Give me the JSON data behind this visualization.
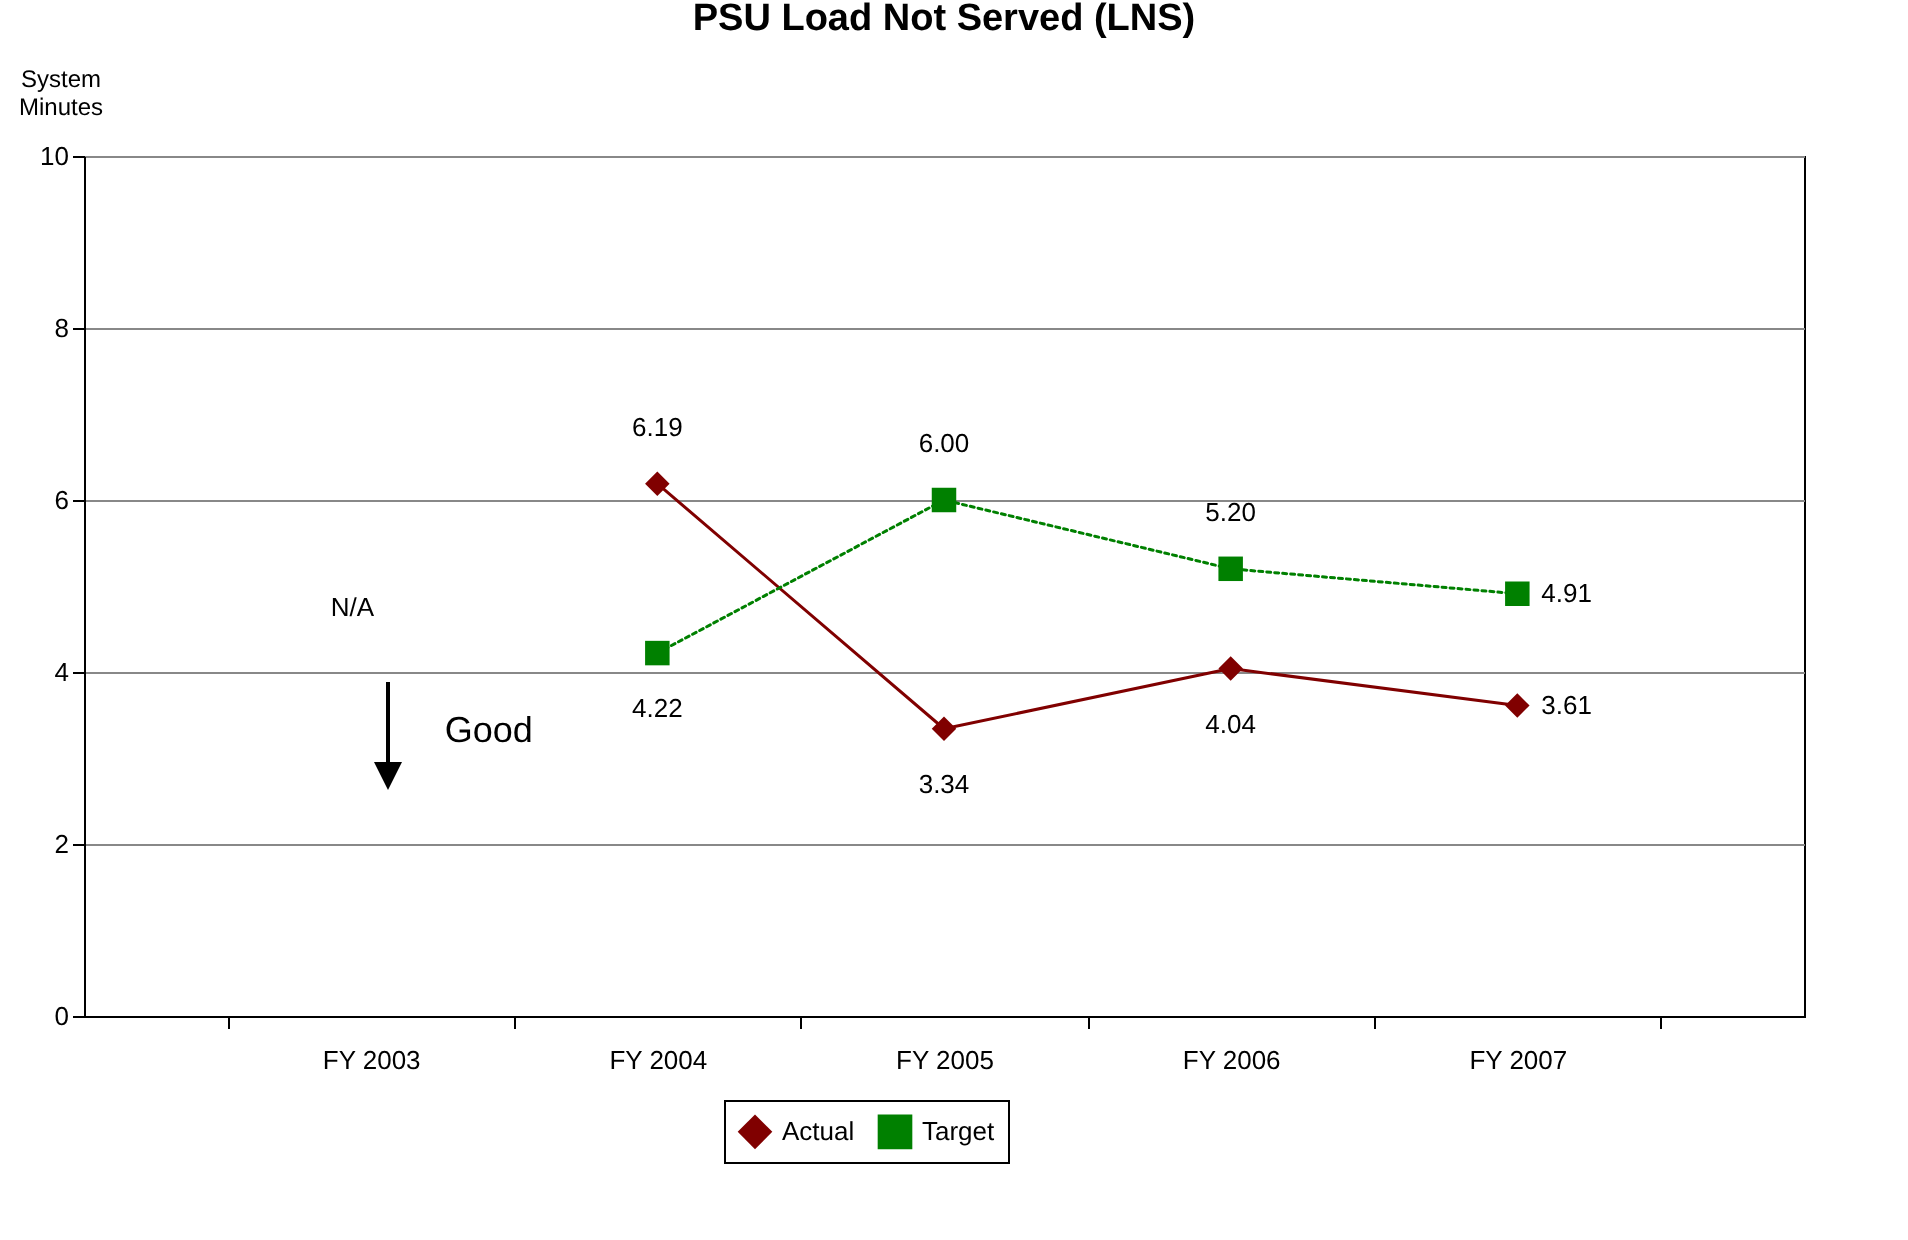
{
  "chart_data": {
    "type": "line",
    "title": "PSU Load Not Served (LNS)",
    "ylabel": "System Minutes",
    "categories": [
      "FY 2003",
      "FY 2004",
      "FY 2005",
      "FY 2006",
      "FY 2007"
    ],
    "series": [
      {
        "name": "Actual",
        "color": "#800000",
        "marker": "diamond",
        "line_style": "solid",
        "values": [
          null,
          6.19,
          3.34,
          4.04,
          3.61
        ],
        "value_labels": [
          null,
          "6.19",
          "3.34",
          "4.04",
          "3.61"
        ]
      },
      {
        "name": "Target",
        "color": "#008000",
        "marker": "square",
        "line_style": "dotted",
        "values": [
          null,
          4.22,
          6.0,
          5.2,
          4.91
        ],
        "value_labels": [
          null,
          "4.22",
          "6.00",
          "5.20",
          "4.91"
        ]
      }
    ],
    "ylim": [
      0,
      10
    ],
    "yticks": [
      0,
      2,
      4,
      6,
      8,
      10
    ],
    "grid": "y",
    "legend": "bottom",
    "annotations": [
      "N/A",
      "Good"
    ]
  }
}
